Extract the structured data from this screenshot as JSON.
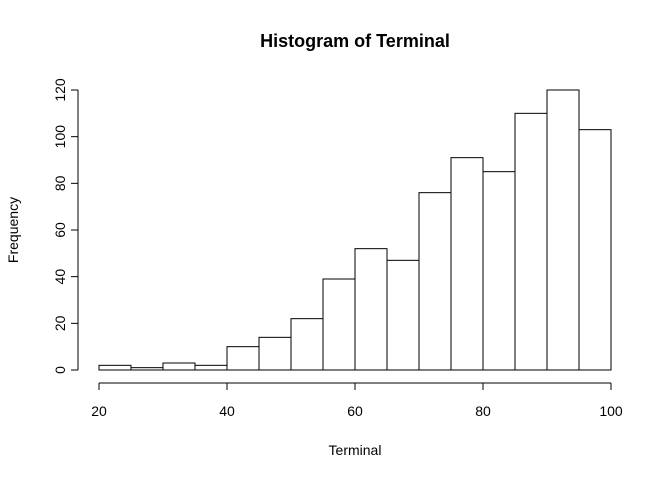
{
  "chart_data": {
    "type": "bar",
    "title": "Histogram of Terminal",
    "xlabel": "Terminal",
    "ylabel": "Frequency",
    "bins": [
      {
        "start": 20,
        "end": 25,
        "count": 2
      },
      {
        "start": 25,
        "end": 30,
        "count": 1
      },
      {
        "start": 30,
        "end": 35,
        "count": 3
      },
      {
        "start": 35,
        "end": 40,
        "count": 2
      },
      {
        "start": 40,
        "end": 45,
        "count": 10
      },
      {
        "start": 45,
        "end": 50,
        "count": 14
      },
      {
        "start": 50,
        "end": 55,
        "count": 22
      },
      {
        "start": 55,
        "end": 60,
        "count": 39
      },
      {
        "start": 60,
        "end": 65,
        "count": 52
      },
      {
        "start": 65,
        "end": 70,
        "count": 47
      },
      {
        "start": 70,
        "end": 75,
        "count": 76
      },
      {
        "start": 75,
        "end": 80,
        "count": 91
      },
      {
        "start": 80,
        "end": 85,
        "count": 85
      },
      {
        "start": 85,
        "end": 90,
        "count": 110
      },
      {
        "start": 90,
        "end": 95,
        "count": 120
      },
      {
        "start": 95,
        "end": 100,
        "count": 103
      }
    ],
    "xlim": [
      20,
      100
    ],
    "ylim": [
      0,
      120
    ],
    "x_ticks": [
      20,
      40,
      60,
      80,
      100
    ],
    "y_ticks": [
      0,
      20,
      40,
      60,
      80,
      100,
      120
    ],
    "grid": false,
    "bar_fill": "#ffffff",
    "bar_stroke": "#000000"
  }
}
